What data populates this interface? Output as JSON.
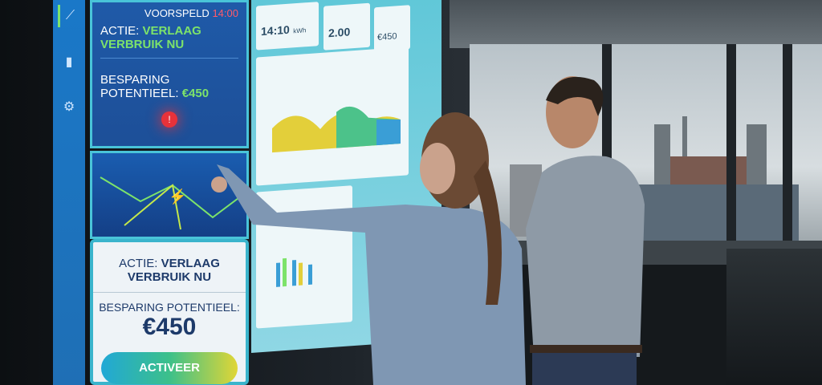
{
  "screen": {
    "sidebar": {
      "icons": [
        "line-chart-icon",
        "bar-chart-icon",
        "gear-icon"
      ]
    },
    "top_panel": {
      "header": "VOORSPELD",
      "header_time": "14:00",
      "action_label": "ACTIE:",
      "action_value": "VERLAAG VERBRUIK NU",
      "saving_label": "BESPARING POTENTIEEL:",
      "saving_value": "€450"
    },
    "bottom_panel": {
      "action_label": "ACTIE:",
      "action_value": "VERLAAG VERBRUIK NU",
      "saving_label": "BESPARING POTENTIEEL:",
      "saving_value": "€450",
      "button": "ACTIVEER"
    },
    "center": {
      "card1_value": "14:10",
      "card1_unit": "kWh",
      "card2_value": "2.00",
      "card3_value": "€450"
    }
  },
  "colors": {
    "accent_green": "#7de36a",
    "alert_red": "#e8323a",
    "time_red": "#ff5a6a",
    "button_gradient": [
      "#21a8d6",
      "#3cc08a",
      "#e0d636"
    ]
  }
}
